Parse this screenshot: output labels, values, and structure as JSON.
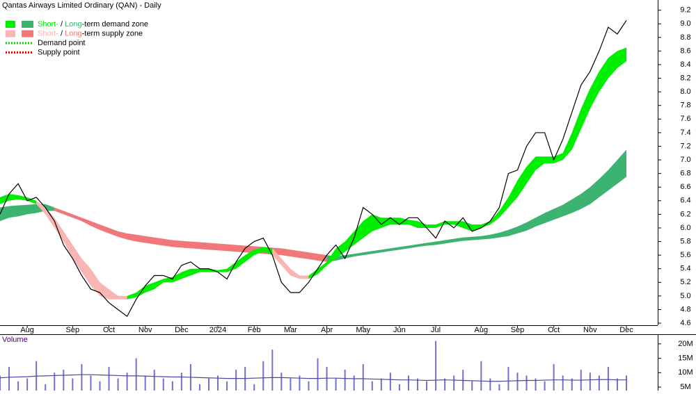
{
  "chart_data": [
    {
      "type": "line",
      "title": "Qantas Airways Limited Ordinary (QAN) - Daily",
      "categories": [
        null,
        null,
        null,
        "Aug",
        null,
        null,
        null,
        null,
        "Sep",
        null,
        null,
        null,
        "Oct",
        null,
        null,
        null,
        "Nov",
        null,
        null,
        null,
        "Dec",
        null,
        null,
        null,
        "2024",
        null,
        null,
        null,
        "Feb",
        null,
        null,
        null,
        "Mar",
        null,
        null,
        null,
        "Apr",
        null,
        null,
        null,
        "May",
        null,
        null,
        null,
        "Jun",
        null,
        null,
        null,
        "Jul",
        null,
        null,
        null,
        null,
        "Aug",
        null,
        null,
        null,
        "Sep",
        null,
        null,
        null,
        "Oct",
        null,
        null,
        null,
        "Nov",
        null,
        null,
        null,
        "Dec"
      ],
      "values": [
        6.2,
        6.5,
        6.65,
        6.4,
        6.45,
        6.3,
        6.1,
        5.75,
        5.55,
        5.3,
        5.1,
        5.05,
        4.9,
        4.8,
        4.7,
        4.95,
        5.15,
        5.3,
        5.3,
        5.25,
        5.45,
        5.5,
        5.4,
        5.4,
        5.35,
        5.25,
        5.5,
        5.7,
        5.8,
        5.85,
        5.6,
        5.2,
        5.05,
        5.05,
        5.2,
        5.4,
        5.6,
        5.75,
        5.55,
        5.85,
        6.3,
        6.2,
        6.05,
        6.15,
        6.05,
        6.15,
        6.15,
        6.0,
        5.85,
        6.1,
        6.0,
        6.15,
        5.95,
        6.0,
        6.1,
        6.3,
        6.8,
        6.85,
        7.2,
        7.4,
        7.4,
        7.0,
        7.3,
        7.7,
        8.1,
        8.3,
        8.6,
        8.95,
        8.85,
        9.05
      ],
      "color": "#000000",
      "zones": [
        {
          "color": "#3cb371",
          "upper": [
            6.3,
            6.32,
            6.33,
            6.34,
            6.35,
            6.35,
            6.3,
            null,
            null,
            null,
            null,
            null,
            null,
            null,
            null,
            null,
            null,
            null,
            null,
            null,
            null,
            null,
            null,
            null,
            null,
            null,
            null,
            null,
            null,
            null,
            null,
            null,
            null,
            null,
            null,
            null,
            5.6,
            5.58,
            5.6,
            5.62,
            5.64,
            5.66,
            5.68,
            5.7,
            5.72,
            5.74,
            5.76,
            5.78,
            5.8,
            5.82,
            5.84,
            5.86,
            5.87,
            5.88,
            5.9,
            5.93,
            5.97,
            6.02,
            6.08,
            6.15,
            6.22,
            6.28,
            6.34,
            6.42,
            6.5,
            6.6,
            6.72,
            6.85,
            7.0,
            7.15
          ],
          "lower": [
            6.1,
            6.15,
            6.17,
            6.2,
            6.22,
            6.25,
            6.25,
            null,
            null,
            null,
            null,
            null,
            null,
            null,
            null,
            null,
            null,
            null,
            null,
            null,
            null,
            null,
            null,
            null,
            null,
            null,
            null,
            null,
            null,
            null,
            null,
            null,
            null,
            null,
            null,
            null,
            5.5,
            5.52,
            5.55,
            5.58,
            5.6,
            5.62,
            5.64,
            5.66,
            5.68,
            5.7,
            5.72,
            5.74,
            5.75,
            5.77,
            5.79,
            5.81,
            5.82,
            5.83,
            5.84,
            5.86,
            5.88,
            5.92,
            5.96,
            6.02,
            6.07,
            6.12,
            6.17,
            6.22,
            6.28,
            6.35,
            6.45,
            6.55,
            6.65,
            6.75
          ]
        },
        {
          "color": "#f07878",
          "upper": [
            null,
            null,
            null,
            null,
            null,
            null,
            6.3,
            6.25,
            6.2,
            6.15,
            6.1,
            6.05,
            6.0,
            5.95,
            5.92,
            5.9,
            5.88,
            5.86,
            5.84,
            5.82,
            5.81,
            5.8,
            5.79,
            5.78,
            5.77,
            5.76,
            5.75,
            5.74,
            5.73,
            5.72,
            5.71,
            5.7,
            5.68,
            5.66,
            5.64,
            5.62,
            5.6,
            null,
            null,
            null,
            null,
            null,
            null,
            null,
            null,
            null,
            null,
            null,
            null,
            null,
            null,
            null,
            null,
            null,
            null,
            null,
            null,
            null,
            null,
            null,
            null,
            null,
            null,
            null,
            null,
            null,
            null,
            null,
            null,
            null
          ],
          "lower": [
            null,
            null,
            null,
            null,
            null,
            null,
            6.25,
            6.2,
            6.15,
            6.1,
            6.03,
            5.97,
            5.92,
            5.87,
            5.83,
            5.8,
            5.78,
            5.76,
            5.74,
            5.72,
            5.71,
            5.7,
            5.69,
            5.68,
            5.67,
            5.66,
            5.65,
            5.64,
            5.63,
            5.62,
            5.61,
            5.6,
            5.58,
            5.56,
            5.54,
            5.52,
            5.5,
            null,
            null,
            null,
            null,
            null,
            null,
            null,
            null,
            null,
            null,
            null,
            null,
            null,
            null,
            null,
            null,
            null,
            null,
            null,
            null,
            null,
            null,
            null,
            null,
            null,
            null,
            null,
            null,
            null,
            null,
            null,
            null,
            null
          ]
        },
        {
          "color": "#00ee00",
          "upper": [
            6.45,
            6.5,
            6.48,
            6.45,
            6.4,
            null,
            null,
            null,
            null,
            null,
            null,
            null,
            null,
            null,
            5.0,
            5.05,
            5.15,
            5.2,
            5.25,
            5.28,
            5.35,
            5.4,
            5.4,
            5.4,
            5.38,
            5.4,
            5.5,
            5.6,
            5.68,
            5.72,
            5.7,
            null,
            null,
            null,
            5.3,
            5.4,
            5.5,
            5.7,
            5.8,
            5.95,
            6.1,
            6.2,
            6.15,
            6.15,
            6.15,
            6.12,
            6.1,
            6.05,
            6.05,
            6.1,
            6.1,
            6.1,
            6.05,
            6.05,
            6.1,
            6.25,
            6.45,
            6.7,
            6.9,
            7.05,
            7.05,
            7.05,
            7.1,
            7.4,
            7.75,
            8.05,
            8.3,
            8.5,
            8.6,
            8.65
          ],
          "lower": [
            6.35,
            6.4,
            6.42,
            6.4,
            6.35,
            null,
            null,
            null,
            null,
            null,
            null,
            null,
            null,
            null,
            4.95,
            4.98,
            5.05,
            5.1,
            5.2,
            5.2,
            5.25,
            5.3,
            5.35,
            5.35,
            5.35,
            5.35,
            5.4,
            5.5,
            5.6,
            5.65,
            5.6,
            null,
            null,
            null,
            5.25,
            5.32,
            5.45,
            5.55,
            5.65,
            5.75,
            5.85,
            5.95,
            6.0,
            6.05,
            6.05,
            6.05,
            6.0,
            6.0,
            6.0,
            6.05,
            6.05,
            6.0,
            5.95,
            6.0,
            6.05,
            6.15,
            6.3,
            6.45,
            6.65,
            6.85,
            6.95,
            6.95,
            7.0,
            7.15,
            7.45,
            7.75,
            8.0,
            8.2,
            8.35,
            8.45
          ]
        },
        {
          "color": "#f9b4b4",
          "upper": [
            null,
            null,
            null,
            null,
            6.4,
            6.3,
            6.15,
            5.95,
            5.75,
            5.55,
            5.4,
            5.2,
            5.1,
            5.0,
            5.0,
            null,
            null,
            null,
            null,
            null,
            null,
            null,
            null,
            null,
            null,
            null,
            null,
            null,
            null,
            null,
            5.7,
            5.55,
            5.4,
            5.3,
            5.3,
            null,
            null,
            null,
            null,
            null,
            null,
            null,
            null,
            null,
            null,
            null,
            null,
            null,
            null,
            null,
            null,
            null,
            null,
            null,
            null,
            null,
            null,
            null,
            null,
            null,
            null,
            null,
            null,
            null,
            null,
            null,
            null,
            null,
            null,
            null
          ],
          "lower": [
            null,
            null,
            null,
            null,
            6.35,
            6.2,
            6.0,
            5.8,
            5.55,
            5.35,
            5.15,
            5.0,
            4.95,
            4.95,
            4.95,
            null,
            null,
            null,
            null,
            null,
            null,
            null,
            null,
            null,
            null,
            null,
            null,
            null,
            null,
            null,
            5.6,
            5.45,
            5.3,
            5.25,
            5.25,
            null,
            null,
            null,
            null,
            null,
            null,
            null,
            null,
            null,
            null,
            null,
            null,
            null,
            null,
            null,
            null,
            null,
            null,
            null,
            null,
            null,
            null,
            null,
            null,
            null,
            null,
            null,
            null,
            null,
            null,
            null,
            null,
            null,
            null,
            null
          ]
        }
      ],
      "legend": [
        {
          "parts": [
            "Short-",
            " / ",
            "Long",
            "-term demand zone"
          ],
          "colors": [
            "#00ee00",
            "#3cb371"
          ]
        },
        {
          "parts": [
            "Short-",
            " / ",
            "Long",
            "-term supply zone"
          ],
          "colors": [
            "#f9b4b4",
            "#f07878"
          ]
        },
        {
          "label": "Demand point",
          "color": "#00cc00"
        },
        {
          "label": "Supply point",
          "color": "#dd0000"
        }
      ],
      "ylim": [
        4.57,
        9.35
      ],
      "yticks": [
        4.6,
        4.8,
        {
          "value": 5.0,
          "label": "5.0"
        },
        5.2,
        5.4,
        5.6,
        5.8,
        {
          "value": 6.0,
          "label": "6.0"
        },
        6.2,
        6.4,
        6.6,
        6.8,
        {
          "value": 7.0,
          "label": "7.0"
        },
        7.2,
        7.4,
        7.6,
        7.8,
        {
          "value": 8.0,
          "label": "8.0"
        },
        8.2,
        8.4,
        8.6,
        8.8,
        {
          "value": 9.0,
          "label": "9.0"
        },
        9.2
      ]
    },
    {
      "type": "bar",
      "title": "Volume",
      "color": "#7070d0",
      "values": [
        9000000,
        12000000,
        7000000,
        8000000,
        14000000,
        6000000,
        10000000,
        11000000,
        8000000,
        13000000,
        9000000,
        7000000,
        12000000,
        8000000,
        10000000,
        15000000,
        9000000,
        11000000,
        8000000,
        7000000,
        10000000,
        13000000,
        6000000,
        8000000,
        9000000,
        7000000,
        11000000,
        12000000,
        6000000,
        14000000,
        18000000,
        10000000,
        8000000,
        9000000,
        7000000,
        15000000,
        12000000,
        8000000,
        11000000,
        9000000,
        13000000,
        7000000,
        8000000,
        10000000,
        6000000,
        9000000,
        8000000,
        7000000,
        21000000,
        8000000,
        9000000,
        11000000,
        7000000,
        14000000,
        8000000,
        6000000,
        12000000,
        10000000,
        9000000,
        8000000,
        7000000,
        13000000,
        9000000,
        8000000,
        11000000,
        10000000,
        9000000,
        12000000,
        8000000,
        9000000
      ],
      "average": {
        "color": "#4a4aa0",
        "values": [
          8200000,
          8400000,
          8500000,
          8600000,
          8800000,
          8900000,
          9000000,
          9100000,
          9200000,
          9300000,
          9300000,
          9200000,
          9100000,
          9000000,
          8900000,
          8900000,
          8800000,
          8700000,
          8600000,
          8500000,
          8500000,
          8400000,
          8300000,
          8200000,
          8100000,
          8000000,
          8000000,
          8000000,
          8100000,
          8200000,
          8300000,
          8300000,
          8200000,
          8100000,
          8000000,
          8000000,
          8100000,
          8100000,
          8000000,
          7900000,
          7900000,
          7800000,
          7700000,
          7600000,
          7500000,
          7500000,
          7400000,
          7300000,
          7400000,
          7500000,
          7400000,
          7300000,
          7200000,
          7100000,
          7000000,
          7000000,
          7100000,
          7200000,
          7300000,
          7300000,
          7400000,
          7500000,
          7500000,
          7400000,
          7400000,
          7500000,
          7600000,
          7600000,
          7500000,
          7500000
        ]
      },
      "ylim": [
        3800000,
        23100000
      ],
      "yticks": [
        {
          "value": 5000000,
          "label": "5M"
        },
        {
          "value": 10000000,
          "label": "10M"
        },
        {
          "value": 15000000,
          "label": "15M"
        },
        {
          "value": 20000000,
          "label": "20M"
        }
      ]
    }
  ]
}
